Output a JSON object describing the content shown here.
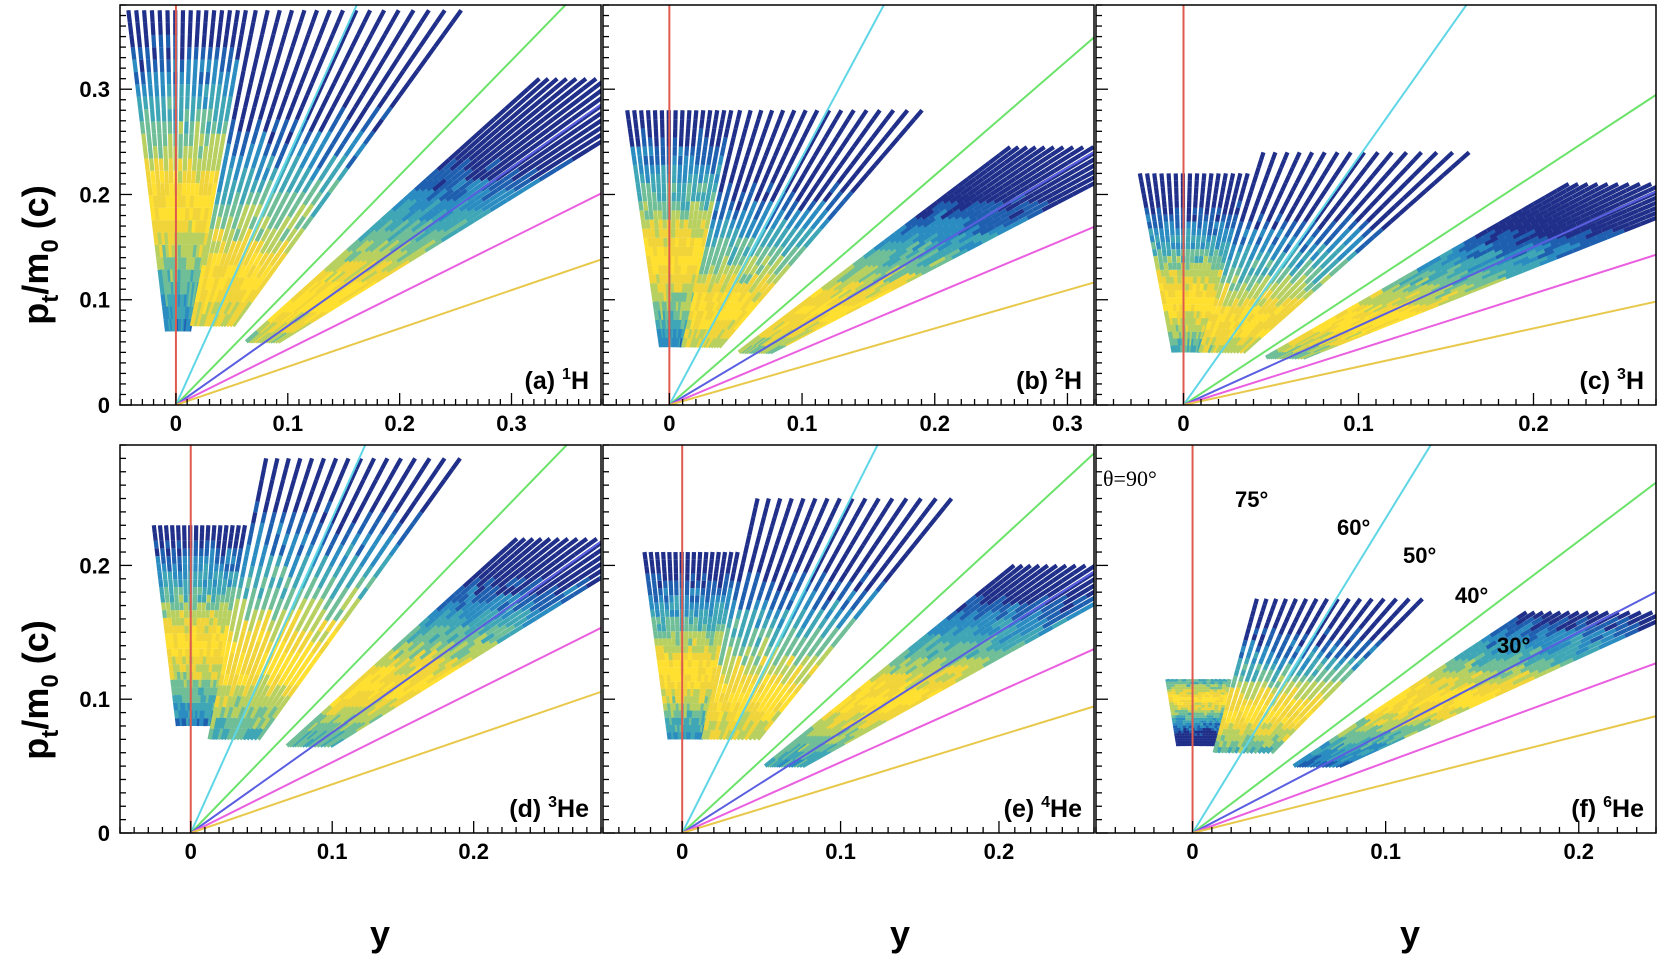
{
  "figure": {
    "ylabel_main": "p",
    "ylabel_sub1": "t",
    "ylabel_mid": "/m",
    "ylabel_sub2": "0",
    "ylabel_tail": " (c)",
    "xlabel": "y"
  },
  "chart_data": [
    {
      "type": "heatmap",
      "panel": "a",
      "label_prefix": "(a)",
      "label_sup": "1",
      "label_elem": "H",
      "xlim": [
        -0.05,
        0.38
      ],
      "ylim": [
        0,
        0.38
      ],
      "xticks": [
        0,
        0.1,
        0.2,
        0.3
      ],
      "xtick_labels": [
        "0",
        "0.1",
        "0.2",
        "0.3"
      ],
      "yticks": [
        0,
        0.1,
        0.2,
        0.3
      ],
      "ytick_labels": [
        "0",
        "0.1",
        "0.2",
        "0.3"
      ],
      "blobs": [
        {
          "angles": [
            80,
            97
          ],
          "pt_range": [
            0.07,
            0.375
          ],
          "intensity_peak": 0.19
        },
        {
          "angles": [
            55,
            80
          ],
          "pt_range": [
            0.075,
            0.375
          ],
          "intensity_peak": 0.12
        },
        {
          "angles": [
            33,
            44
          ],
          "pt_range": [
            0.06,
            0.31
          ],
          "intensity_peak": 0.1
        }
      ]
    },
    {
      "type": "heatmap",
      "panel": "b",
      "label_prefix": "(b)",
      "label_sup": "2",
      "label_elem": "H",
      "xlim": [
        -0.05,
        0.32
      ],
      "ylim": [
        0,
        0.38
      ],
      "xticks": [
        0,
        0.1,
        0.2,
        0.3
      ],
      "xtick_labels": [
        "0",
        "0.1",
        "0.2",
        "0.3"
      ],
      "yticks": [
        0,
        0.1,
        0.2,
        0.3
      ],
      "ytick_labels": [
        "0",
        "0.1",
        "0.2",
        "0.3"
      ],
      "blobs": [
        {
          "angles": [
            80,
            97
          ],
          "pt_range": [
            0.055,
            0.28
          ],
          "intensity_peak": 0.14
        },
        {
          "angles": [
            55,
            80
          ],
          "pt_range": [
            0.055,
            0.28
          ],
          "intensity_peak": 0.09
        },
        {
          "angles": [
            33,
            44
          ],
          "pt_range": [
            0.05,
            0.245
          ],
          "intensity_peak": 0.09
        }
      ]
    },
    {
      "type": "heatmap",
      "panel": "c",
      "label_prefix": "(c)",
      "label_sup": "3",
      "label_elem": "H",
      "xlim": [
        -0.05,
        0.27
      ],
      "ylim": [
        0,
        0.38
      ],
      "xticks": [
        0,
        0.1,
        0.2
      ],
      "xtick_labels": [
        "0",
        "0.1",
        "0.2"
      ],
      "yticks": [
        0,
        0.1,
        0.2,
        0.3
      ],
      "ytick_labels": [
        "0",
        "0.1",
        "0.2",
        "0.3"
      ],
      "blobs": [
        {
          "angles": [
            80,
            97
          ],
          "pt_range": [
            0.05,
            0.22
          ],
          "intensity_peak": 0.1
        },
        {
          "angles": [
            55,
            80
          ],
          "pt_range": [
            0.05,
            0.24
          ],
          "intensity_peak": 0.08
        },
        {
          "angles": [
            33,
            44
          ],
          "pt_range": [
            0.045,
            0.21
          ],
          "intensity_peak": 0.08
        }
      ]
    },
    {
      "type": "heatmap",
      "panel": "d",
      "label_prefix": "(d)",
      "label_sup": "3",
      "label_elem": "He",
      "xlim": [
        -0.05,
        0.29
      ],
      "ylim": [
        0,
        0.29
      ],
      "xticks": [
        0,
        0.1,
        0.2
      ],
      "xtick_labels": [
        "0",
        "0.1",
        "0.2"
      ],
      "yticks": [
        0,
        0.1,
        0.2
      ],
      "ytick_labels": [
        "0",
        "0.1",
        "0.2"
      ],
      "blobs": [
        {
          "angles": [
            80,
            97
          ],
          "pt_range": [
            0.08,
            0.23
          ],
          "intensity_peak": 0.14
        },
        {
          "angles": [
            55,
            80
          ],
          "pt_range": [
            0.07,
            0.28
          ],
          "intensity_peak": 0.13
        },
        {
          "angles": [
            33,
            44
          ],
          "pt_range": [
            0.065,
            0.22
          ],
          "intensity_peak": 0.11
        }
      ]
    },
    {
      "type": "heatmap",
      "panel": "e",
      "label_prefix": "(e)",
      "label_sup": "4",
      "label_elem": "He",
      "xlim": [
        -0.05,
        0.26
      ],
      "ylim": [
        0,
        0.29
      ],
      "xticks": [
        0,
        0.1,
        0.2
      ],
      "xtick_labels": [
        "0",
        "0.1",
        "0.2"
      ],
      "yticks": [
        0,
        0.1,
        0.2
      ],
      "ytick_labels": [
        "0",
        "0.1",
        "0.2"
      ],
      "blobs": [
        {
          "angles": [
            80,
            97
          ],
          "pt_range": [
            0.07,
            0.21
          ],
          "intensity_peak": 0.12
        },
        {
          "angles": [
            55,
            80
          ],
          "pt_range": [
            0.07,
            0.25
          ],
          "intensity_peak": 0.1
        },
        {
          "angles": [
            33,
            44
          ],
          "pt_range": [
            0.05,
            0.2
          ],
          "intensity_peak": 0.1
        }
      ]
    },
    {
      "type": "heatmap",
      "panel": "f",
      "label_prefix": "(f)",
      "label_sup": "6",
      "label_elem": "He",
      "xlim": [
        -0.05,
        0.24
      ],
      "ylim": [
        0,
        0.29
      ],
      "xticks": [
        0,
        0.1,
        0.2
      ],
      "xtick_labels": [
        "0",
        "0.1",
        "0.2"
      ],
      "yticks": [
        0,
        0.1,
        0.2
      ],
      "ytick_labels": [
        "0",
        "0.1",
        "0.2"
      ],
      "blobs": [
        {
          "angles": [
            80,
            97
          ],
          "pt_range": [
            0.065,
            0.115
          ],
          "intensity_peak": 0.1
        },
        {
          "angles": [
            55,
            80
          ],
          "pt_range": [
            0.06,
            0.175
          ],
          "intensity_peak": 0.09
        },
        {
          "angles": [
            33,
            44
          ],
          "pt_range": [
            0.05,
            0.165
          ],
          "intensity_peak": 0.1
        }
      ]
    }
  ],
  "theta_lines": [
    {
      "angle_deg": 90,
      "color": "#e05a4e",
      "label": "θ=90°"
    },
    {
      "angle_deg": 75,
      "color": "#5fd6e6",
      "label": "75°"
    },
    {
      "angle_deg": 60,
      "color": "#6be36a",
      "label": "60°"
    },
    {
      "angle_deg": 50,
      "color": "#5a5ee0",
      "label": "50°"
    },
    {
      "angle_deg": 40,
      "color": "#ea5ee0",
      "label": "40°"
    },
    {
      "angle_deg": 30,
      "color": "#e8c84a",
      "label": "30°"
    }
  ],
  "colormap": [
    "#20308a",
    "#1f5fb0",
    "#2a8cc0",
    "#3fa6b6",
    "#6fbe98",
    "#b8d060",
    "#f0d43a",
    "#ffe030"
  ]
}
